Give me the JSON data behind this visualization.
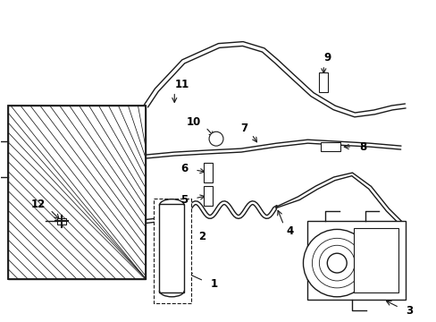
{
  "background_color": "#ffffff",
  "line_color": "#1a1a1a",
  "text_color": "#000000",
  "lw": 1.0
}
